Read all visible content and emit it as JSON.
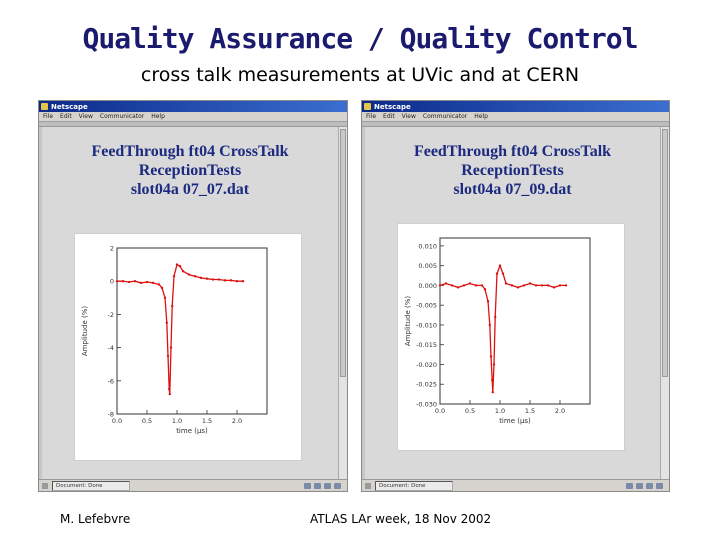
{
  "slide": {
    "title": "Quality Assurance / Quality Control",
    "subtitle": "cross talk measurements at UVic and at CERN",
    "footer_left": "M. Lefebvre",
    "footer_center": "ATLAS LAr week, 18 Nov 2002"
  },
  "windows": [
    {
      "app_title": "Netscape",
      "menu": [
        "File",
        "Edit",
        "View",
        "Communicator",
        "Help"
      ],
      "heading": [
        "FeedThrough ft04 CrossTalk",
        "ReceptionTests",
        "slot04a 07_07.dat"
      ],
      "status_text": "Document: Done",
      "chart_data": {
        "type": "scatter",
        "xlabel": "time (µs)",
        "ylabel": "Amplitude (%)",
        "xlim": [
          0,
          2.5
        ],
        "ylim": [
          -8,
          2
        ],
        "xticks": [
          "0.0",
          "0.5",
          "1.0",
          "1.5",
          "2.0"
        ],
        "yticks": [
          "2",
          "0",
          "-2",
          "-4",
          "-6",
          "-8"
        ],
        "series": [
          {
            "color": "#dd1111",
            "points": [
              [
                0.0,
                0.0
              ],
              [
                0.1,
                0.0
              ],
              [
                0.2,
                -0.05
              ],
              [
                0.3,
                0.0
              ],
              [
                0.4,
                -0.1
              ],
              [
                0.5,
                -0.05
              ],
              [
                0.6,
                -0.1
              ],
              [
                0.7,
                -0.2
              ],
              [
                0.75,
                -0.4
              ],
              [
                0.8,
                -1.0
              ],
              [
                0.83,
                -2.5
              ],
              [
                0.85,
                -4.5
              ],
              [
                0.87,
                -6.5
              ],
              [
                0.88,
                -6.8
              ],
              [
                0.9,
                -4.0
              ],
              [
                0.92,
                -1.5
              ],
              [
                0.95,
                0.3
              ],
              [
                1.0,
                1.0
              ],
              [
                1.05,
                0.9
              ],
              [
                1.1,
                0.6
              ],
              [
                1.2,
                0.4
              ],
              [
                1.3,
                0.3
              ],
              [
                1.4,
                0.2
              ],
              [
                1.5,
                0.15
              ],
              [
                1.6,
                0.1
              ],
              [
                1.7,
                0.1
              ],
              [
                1.8,
                0.05
              ],
              [
                1.9,
                0.05
              ],
              [
                2.0,
                0.0
              ],
              [
                2.1,
                0.0
              ]
            ]
          }
        ]
      }
    },
    {
      "app_title": "Netscape",
      "menu": [
        "File",
        "Edit",
        "View",
        "Communicator",
        "Help"
      ],
      "heading": [
        "FeedThrough ft04 CrossTalk",
        "ReceptionTests",
        "slot04a 07_09.dat"
      ],
      "status_text": "Document: Done",
      "chart_data": {
        "type": "scatter",
        "xlabel": "time (µs)",
        "ylabel": "Amplitude (%)",
        "xlim": [
          0,
          2.5
        ],
        "ylim": [
          -0.03,
          0.012
        ],
        "xticks": [
          "0.0",
          "0.5",
          "1.0",
          "1.5",
          "2.0"
        ],
        "yticks": [
          "0.010",
          "0.005",
          "0.000",
          "-0.005",
          "-0.010",
          "-0.015",
          "-0.020",
          "-0.025",
          "-0.030"
        ],
        "series": [
          {
            "color": "#dd1111",
            "points": [
              [
                0.0,
                0.0
              ],
              [
                0.1,
                0.0005
              ],
              [
                0.2,
                0.0
              ],
              [
                0.3,
                -0.0005
              ],
              [
                0.4,
                0.0
              ],
              [
                0.5,
                0.0005
              ],
              [
                0.6,
                0.0
              ],
              [
                0.7,
                0.0
              ],
              [
                0.75,
                -0.001
              ],
              [
                0.8,
                -0.004
              ],
              [
                0.83,
                -0.01
              ],
              [
                0.85,
                -0.018
              ],
              [
                0.87,
                -0.024
              ],
              [
                0.88,
                -0.027
              ],
              [
                0.9,
                -0.02
              ],
              [
                0.92,
                -0.008
              ],
              [
                0.95,
                0.003
              ],
              [
                1.0,
                0.005
              ],
              [
                1.05,
                0.003
              ],
              [
                1.1,
                0.0005
              ],
              [
                1.2,
                0.0
              ],
              [
                1.3,
                -0.0005
              ],
              [
                1.4,
                0.0
              ],
              [
                1.5,
                0.0005
              ],
              [
                1.6,
                0.0
              ],
              [
                1.7,
                0.0
              ],
              [
                1.8,
                0.0
              ],
              [
                1.9,
                -0.0005
              ],
              [
                2.0,
                0.0
              ],
              [
                2.1,
                0.0
              ]
            ]
          }
        ]
      }
    }
  ]
}
